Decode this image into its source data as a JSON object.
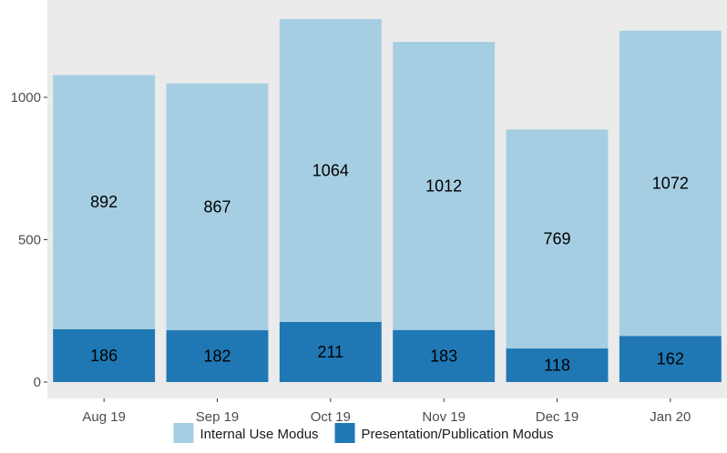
{
  "chart_data": {
    "type": "bar",
    "stacked": true,
    "categories": [
      "Aug 19",
      "Sep 19",
      "Oct 19",
      "Nov 19",
      "Dec 19",
      "Jan 20"
    ],
    "series": [
      {
        "name": "Presentation/Publication Modus",
        "values": [
          186,
          182,
          211,
          183,
          118,
          162
        ],
        "color": "#1f78b4"
      },
      {
        "name": "Internal Use Modus",
        "values": [
          892,
          867,
          1064,
          1012,
          769,
          1072
        ],
        "color": "#a6cee3"
      }
    ],
    "title": "",
    "xlabel": "",
    "ylabel": "",
    "ylim": [
      0,
      1300
    ],
    "yticks": [
      0,
      500,
      1000
    ],
    "grid": false,
    "panel_background": "#ebebeb",
    "legend": {
      "position": "bottom",
      "order": [
        "Internal Use Modus",
        "Presentation/Publication Modus"
      ]
    }
  }
}
